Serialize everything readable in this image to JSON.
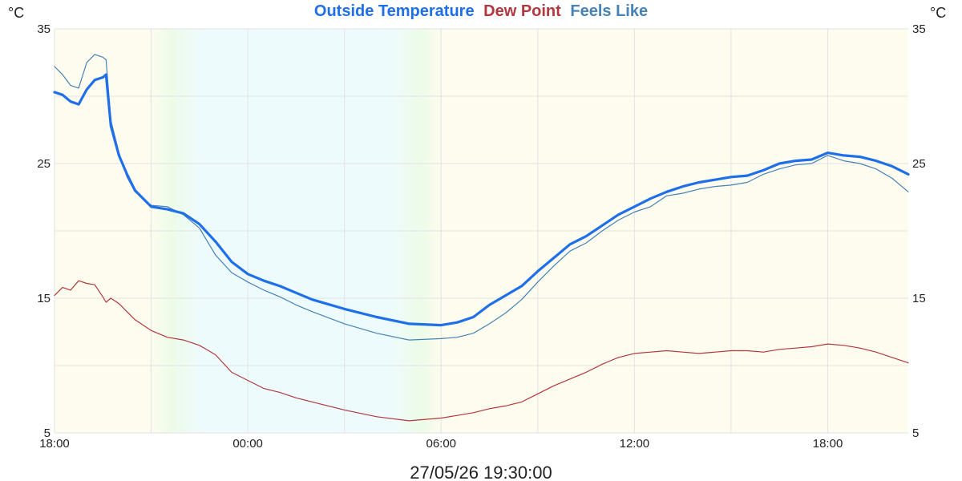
{
  "chart_data": {
    "type": "line",
    "legend": [
      "Outside Temperature",
      "Dew Point",
      "Feels Like"
    ],
    "left_unit": "°C",
    "right_unit": "°C",
    "timestamp": "27/05/26 19:30:00",
    "y_ticks": [
      "35",
      "25",
      "15",
      "5"
    ],
    "x_ticks": [
      "18:00",
      "00:00",
      "06:00",
      "12:00",
      "18:00"
    ],
    "ylim": [
      5,
      35
    ],
    "xlim_hours": [
      0,
      26.5
    ],
    "grid": true,
    "x_unit": "hours after 18:00 on 26/05/26",
    "background_bands": [
      {
        "from": 0,
        "to": 3,
        "color": "#fdfcee"
      },
      {
        "from": 3,
        "to": 4.5,
        "color": "gradient-yellow-to-cyan"
      },
      {
        "from": 4.5,
        "to": 10.5,
        "color": "#eefbfc"
      },
      {
        "from": 10.5,
        "to": 12,
        "color": "gradient-cyan-to-yellow"
      },
      {
        "from": 12,
        "to": 26.5,
        "color": "#fdfcee"
      }
    ],
    "series": [
      {
        "name": "Outside Temperature",
        "color": "#1f6fe8",
        "x": [
          0,
          0.25,
          0.5,
          0.75,
          1,
          1.25,
          1.5,
          1.6,
          1.75,
          2,
          2.25,
          2.5,
          3,
          3.5,
          4,
          4.5,
          5,
          5.5,
          6,
          6.5,
          7,
          7.5,
          8,
          9,
          10,
          11,
          12,
          12.5,
          13,
          13.5,
          14,
          14.5,
          15,
          15.5,
          16,
          16.5,
          17,
          17.5,
          18,
          18.5,
          19,
          19.5,
          20,
          20.5,
          21,
          21.5,
          22,
          22.5,
          23,
          23.5,
          24,
          24.5,
          25,
          25.5,
          26,
          26.5
        ],
        "values": [
          30.3,
          30.1,
          29.6,
          29.4,
          30.5,
          31.2,
          31.4,
          31.6,
          27.8,
          25.6,
          24.2,
          23.0,
          21.8,
          21.6,
          21.3,
          20.5,
          19.2,
          17.7,
          16.8,
          16.3,
          15.9,
          15.4,
          14.9,
          14.2,
          13.6,
          13.1,
          13.0,
          13.2,
          13.6,
          14.5,
          15.2,
          15.9,
          17.0,
          18.0,
          19.0,
          19.6,
          20.4,
          21.2,
          21.8,
          22.4,
          22.9,
          23.3,
          23.6,
          23.8,
          24.0,
          24.1,
          24.5,
          25.0,
          25.2,
          25.3,
          25.8,
          25.6,
          25.5,
          25.2,
          24.8,
          24.2
        ],
        "stroke_width": 3.2
      },
      {
        "name": "Feels Like",
        "color": "#4682b4",
        "x": [
          0,
          0.25,
          0.5,
          0.75,
          1,
          1.25,
          1.5,
          1.6,
          1.75,
          2,
          2.25,
          2.5,
          3,
          3.5,
          4,
          4.5,
          5,
          5.5,
          6,
          6.5,
          7,
          7.5,
          8,
          9,
          10,
          11,
          12,
          12.5,
          13,
          13.5,
          14,
          14.5,
          15,
          15.5,
          16,
          16.5,
          17,
          17.5,
          18,
          18.5,
          19,
          19.5,
          20,
          20.5,
          21,
          21.5,
          22,
          22.5,
          23,
          23.5,
          24,
          24.5,
          25,
          25.5,
          26,
          26.5
        ],
        "values": [
          32.2,
          31.6,
          30.8,
          30.6,
          32.5,
          33.1,
          32.9,
          32.7,
          28.2,
          25.8,
          24.0,
          22.9,
          21.9,
          21.8,
          21.2,
          20.2,
          18.2,
          16.9,
          16.2,
          15.6,
          15.1,
          14.5,
          14.0,
          13.1,
          12.4,
          11.9,
          12.0,
          12.1,
          12.4,
          13.1,
          13.9,
          14.9,
          16.2,
          17.4,
          18.5,
          19.1,
          20.0,
          20.8,
          21.4,
          21.8,
          22.6,
          22.8,
          23.1,
          23.3,
          23.4,
          23.6,
          24.2,
          24.6,
          24.9,
          25.0,
          25.6,
          25.2,
          25.0,
          24.6,
          23.9,
          22.9
        ],
        "stroke_width": 1.2
      },
      {
        "name": "Dew Point",
        "color": "#b1383e",
        "x": [
          0,
          0.25,
          0.5,
          0.75,
          1,
          1.25,
          1.5,
          1.6,
          1.75,
          2,
          2.25,
          2.5,
          3,
          3.5,
          4,
          4.5,
          5,
          5.5,
          6,
          6.5,
          7,
          7.5,
          8,
          9,
          10,
          11,
          12,
          12.5,
          13,
          13.5,
          14,
          14.5,
          15,
          15.5,
          16,
          16.5,
          17,
          17.5,
          18,
          18.5,
          19,
          19.5,
          20,
          20.5,
          21,
          21.5,
          22,
          22.5,
          23,
          23.5,
          24,
          24.5,
          25,
          25.5,
          26,
          26.5
        ],
        "values": [
          15.2,
          15.8,
          15.6,
          16.3,
          16.1,
          16.0,
          15.1,
          14.7,
          15.0,
          14.6,
          14.0,
          13.4,
          12.6,
          12.1,
          11.9,
          11.5,
          10.8,
          9.5,
          8.9,
          8.3,
          8.0,
          7.6,
          7.3,
          6.7,
          6.2,
          5.9,
          6.1,
          6.3,
          6.5,
          6.8,
          7.0,
          7.3,
          7.9,
          8.5,
          9.0,
          9.5,
          10.1,
          10.6,
          10.9,
          11.0,
          11.1,
          11.0,
          10.9,
          11.0,
          11.1,
          11.1,
          11.0,
          11.2,
          11.3,
          11.4,
          11.6,
          11.5,
          11.3,
          11.0,
          10.6,
          10.2
        ],
        "stroke_width": 1.2
      }
    ]
  }
}
